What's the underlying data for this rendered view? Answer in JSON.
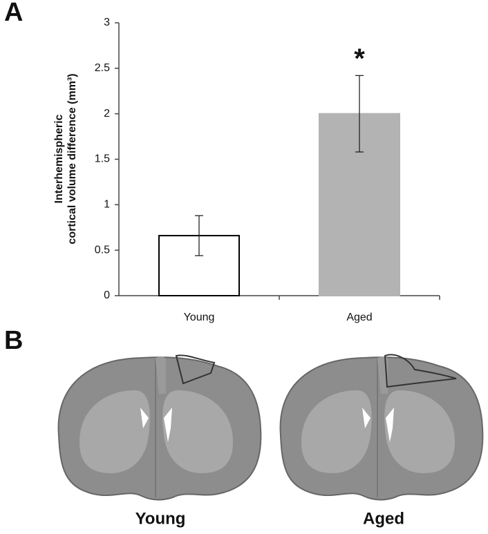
{
  "panels": {
    "a": "A",
    "b": "B"
  },
  "chart_data": {
    "type": "bar",
    "ylabel": [
      "Interhemispheric",
      "cortical volume difference (mm³)"
    ],
    "categories": [
      "Young",
      "Aged"
    ],
    "values": [
      0.66,
      2.0
    ],
    "errors": [
      0.22,
      0.42
    ],
    "colors": [
      "#ffffff",
      "#b3b3b3"
    ],
    "edgecolors": [
      "#000000",
      "#b3b3b3"
    ],
    "annotation": "*",
    "ylim": [
      0,
      3
    ],
    "yticks": [
      0,
      0.5,
      1,
      1.5,
      2,
      2.5,
      3
    ]
  },
  "images": {
    "labels": [
      "Young",
      "Aged"
    ]
  }
}
